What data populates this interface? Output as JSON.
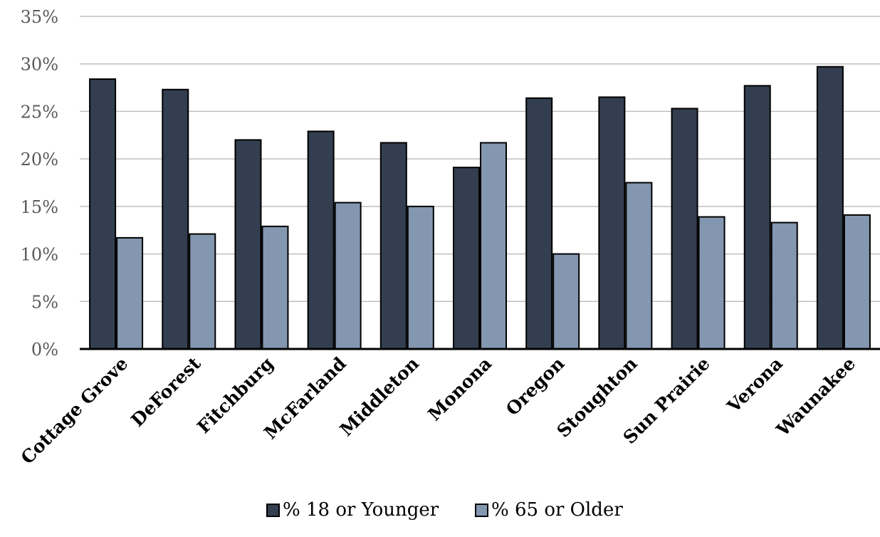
{
  "chart_data": {
    "type": "bar",
    "title": "",
    "xlabel": "",
    "ylabel": "",
    "ylim": [
      0,
      35
    ],
    "y_ticks": [
      0,
      5,
      10,
      15,
      20,
      25,
      30,
      35
    ],
    "y_tick_format": "percent",
    "grid": true,
    "legend_position": "bottom",
    "categories": [
      "Cottage Grove",
      "DeForest",
      "Fitchburg",
      "McFarland",
      "Middleton",
      "Monona",
      "Oregon",
      "Stoughton",
      "Sun Prairie",
      "Verona",
      "Waunakee"
    ],
    "series": [
      {
        "name": "% 18 or Younger",
        "color": "#333f50",
        "values": [
          28.4,
          27.3,
          22.0,
          22.9,
          21.7,
          19.1,
          26.4,
          26.5,
          25.3,
          27.7,
          29.7
        ]
      },
      {
        "name": "% 65 or Older",
        "color": "#8497b0",
        "values": [
          11.7,
          12.1,
          12.9,
          15.4,
          15.0,
          21.7,
          10.0,
          17.5,
          13.9,
          13.3,
          14.1
        ]
      }
    ]
  }
}
